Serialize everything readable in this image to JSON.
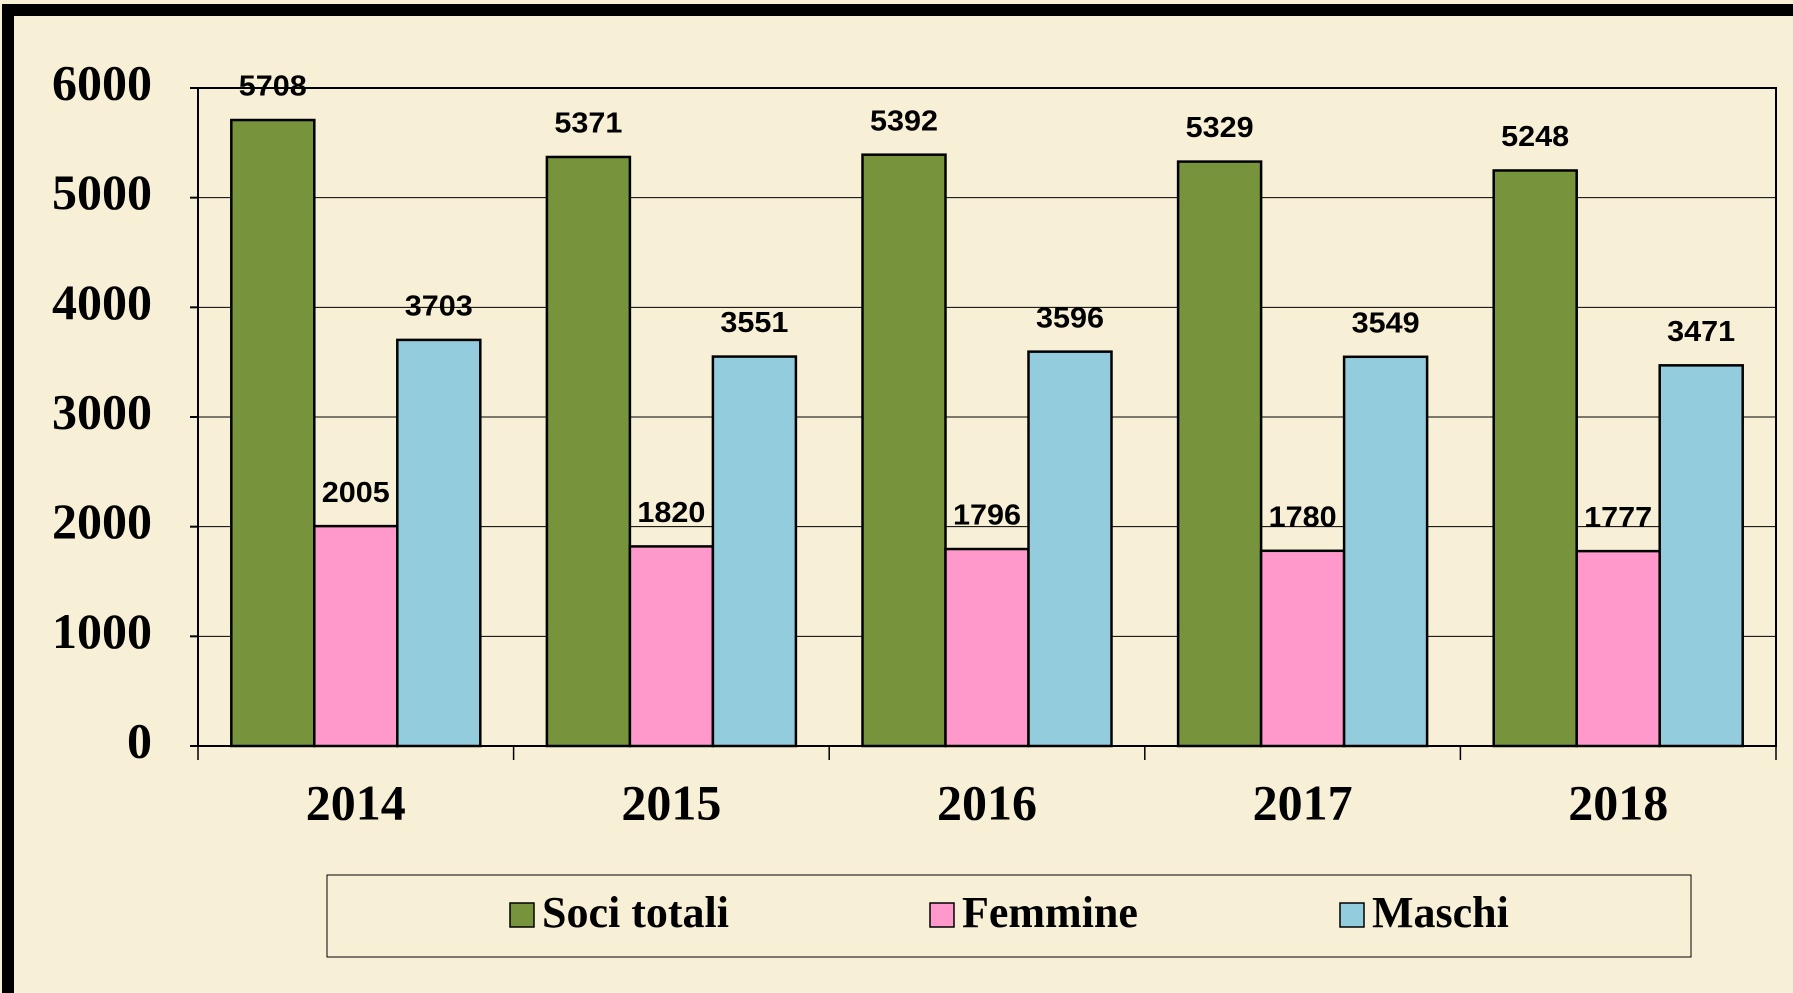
{
  "chart_data": {
    "type": "bar",
    "categories": [
      "2014",
      "2015",
      "2016",
      "2017",
      "2018"
    ],
    "series": [
      {
        "name": "Soci totali",
        "color": "#77933c",
        "values": [
          5708,
          5371,
          5392,
          5329,
          5248
        ]
      },
      {
        "name": "Femmine",
        "color": "#ff99cc",
        "values": [
          2005,
          1820,
          1796,
          1780,
          1777
        ]
      },
      {
        "name": "Maschi",
        "color": "#93cddd",
        "values": [
          3703,
          3551,
          3596,
          3549,
          3471
        ]
      }
    ],
    "ylim": [
      0,
      6000
    ],
    "yticks": [
      0,
      1000,
      2000,
      3000,
      4000,
      5000,
      6000
    ],
    "grid": true,
    "legend": "bottom"
  }
}
